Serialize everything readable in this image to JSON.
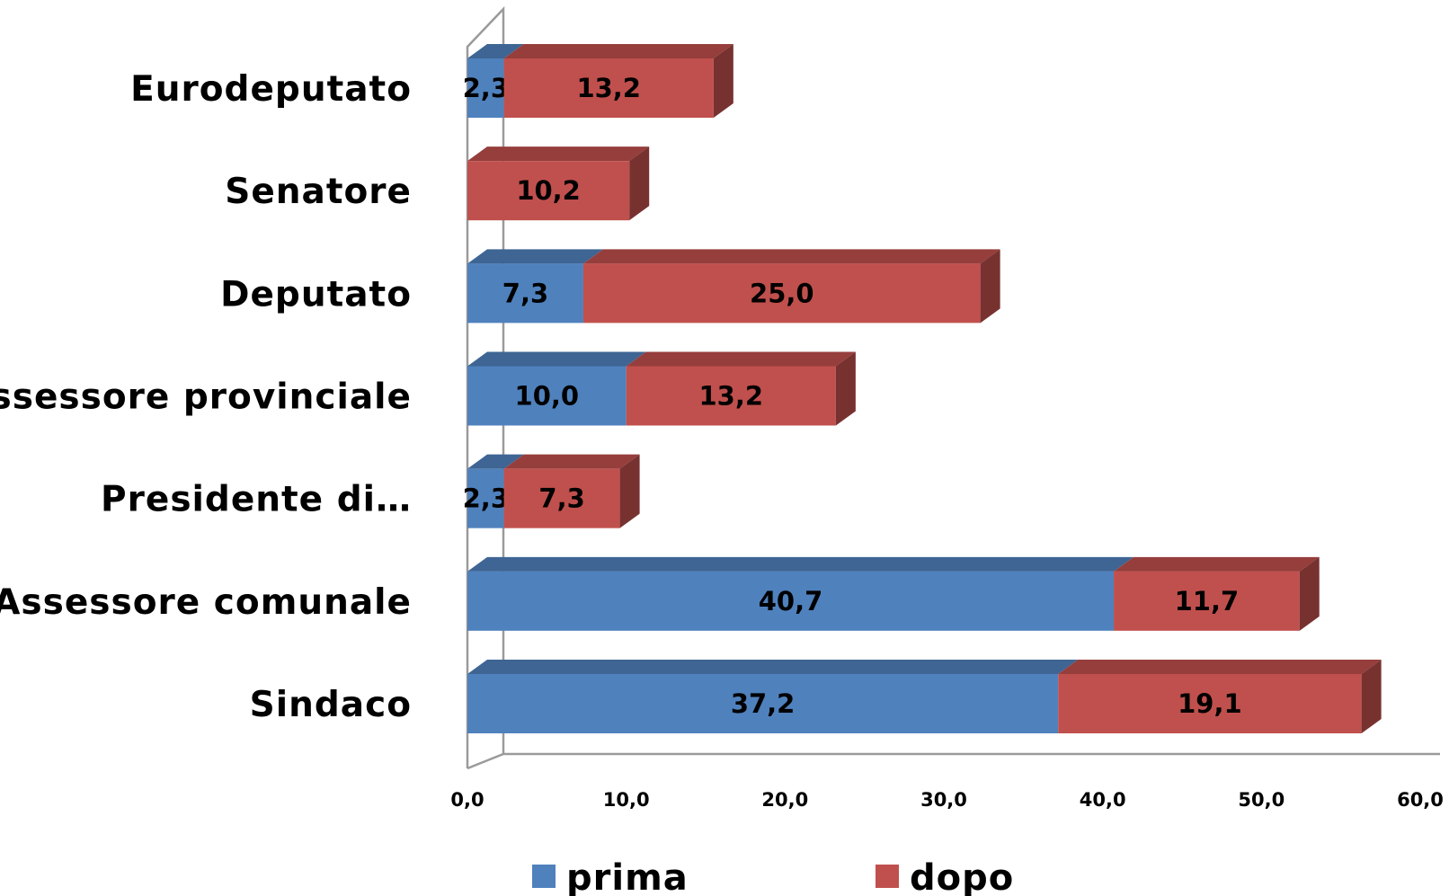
{
  "chart_data": {
    "type": "bar",
    "orientation": "horizontal",
    "stacked": true,
    "three_d": true,
    "categories": [
      "Eurodeputato",
      "Senatore",
      "Deputato",
      "Assessore provinciale",
      "Presidente di…",
      "Assessore comunale",
      "Sindaco"
    ],
    "series": [
      {
        "name": "prima",
        "color": "#4F81BD",
        "values": [
          2.3,
          0,
          7.3,
          10.0,
          2.3,
          40.7,
          37.2
        ],
        "labels": [
          "2,3",
          "",
          "7,3",
          "10,0",
          "2,3",
          "40,7",
          "37,2"
        ]
      },
      {
        "name": "dopo",
        "color": "#C0504D",
        "values": [
          13.2,
          10.2,
          25.0,
          13.2,
          7.3,
          11.7,
          19.1
        ],
        "labels": [
          "13,2",
          "10,2",
          "25,0",
          "13,2",
          "7,3",
          "11,7",
          "19,1"
        ]
      }
    ],
    "xlim": [
      0,
      60
    ],
    "x_ticks": [
      "0,0",
      "10,0",
      "20,0",
      "30,0",
      "40,0",
      "50,0",
      "60,0"
    ],
    "legend_position": "bottom",
    "grid": false
  }
}
